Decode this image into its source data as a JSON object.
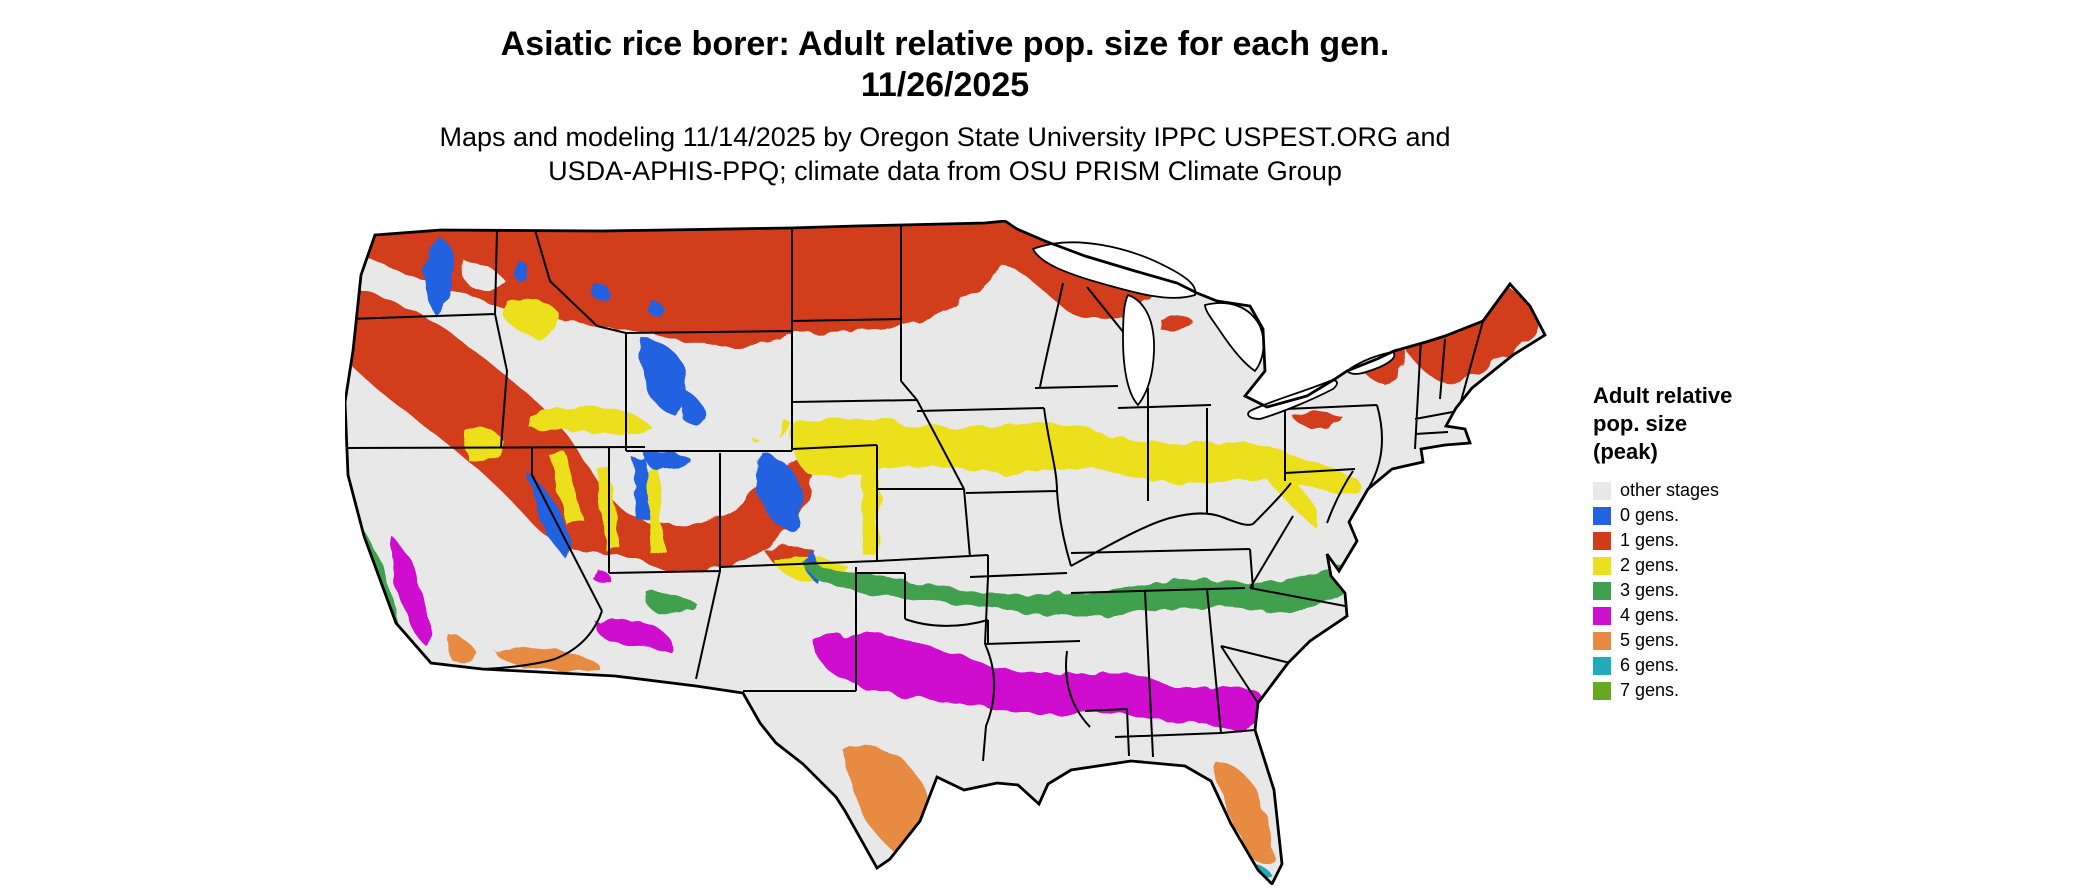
{
  "header": {
    "title_line1": "Asiatic rice borer: Adult relative pop. size for each gen.",
    "title_line2": "11/26/2025",
    "subtitle_line1": "Maps and modeling 11/14/2025 by Oregon State University IPPC USPEST.ORG and",
    "subtitle_line2": "USDA-APHIS-PPQ; climate data from OSU PRISM Climate Group"
  },
  "legend": {
    "title_line1": "Adult relative",
    "title_line2": "pop. size",
    "title_line3": "(peak)",
    "items": [
      {
        "label": "other stages",
        "color_key": "other"
      },
      {
        "label": "0 gens.",
        "color_key": "g0"
      },
      {
        "label": "1 gens.",
        "color_key": "g1"
      },
      {
        "label": "2 gens.",
        "color_key": "g2"
      },
      {
        "label": "3 gens.",
        "color_key": "g3"
      },
      {
        "label": "4 gens.",
        "color_key": "g4"
      },
      {
        "label": "5 gens.",
        "color_key": "g5"
      },
      {
        "label": "6 gens.",
        "color_key": "g6"
      },
      {
        "label": "7 gens.",
        "color_key": "g7"
      }
    ]
  },
  "palette": {
    "other": "#e8e8e8",
    "g0": "#2362e1",
    "g1": "#d23c1a",
    "g2": "#ecdf1e",
    "g3": "#3fa04d",
    "g4": "#ce10ce",
    "g5": "#e78a43",
    "g6": "#23a9b9",
    "g7": "#66a81f",
    "land": "#e8e8e8",
    "border": "#000000",
    "water": "#ffffff"
  },
  "map_summary": {
    "region": "Contiguous United States",
    "bands": [
      {
        "gens": "1 gens.",
        "where": "Pacific Northwest, northern Rockies, Montana, North Dakota, northern Minnesota, Wisconsin, upper Michigan, Adirondacks, northern New England, Great Basin mountains"
      },
      {
        "gens": "0 gens.",
        "where": "High mountain areas: Cascades, Sierra Nevada, Yellowstone/Wind River, Colorado Rockies, Wasatch/Uintas"
      },
      {
        "gens": "2 gens.",
        "where": "Band across Nebraska, Iowa, Illinois, Indiana, Ohio, Pennsylvania to New Jersey; Columbia and Snake River plains; Great Basin valleys; Colorado Front Range"
      },
      {
        "gens": "3 gens.",
        "where": "Band across Oklahoma, Arkansas, Tennessee, Carolinas to Virginia coast; central California coast ranges; Mogollon Rim"
      },
      {
        "gens": "4 gens.",
        "where": "Central Texas through Louisiana, southern Mississippi/Alabama/Georgia into north Florida; California Central Valley; southern Arizona"
      },
      {
        "gens": "5 gens.",
        "where": "South Texas, Florida peninsula, low deserts of southern Arizona and southeastern California"
      },
      {
        "gens": "6 gens.",
        "where": "Southern tip of Florida, southernmost Texas coast"
      },
      {
        "gens": "7 gens.",
        "where": "not visibly present on map"
      }
    ]
  }
}
